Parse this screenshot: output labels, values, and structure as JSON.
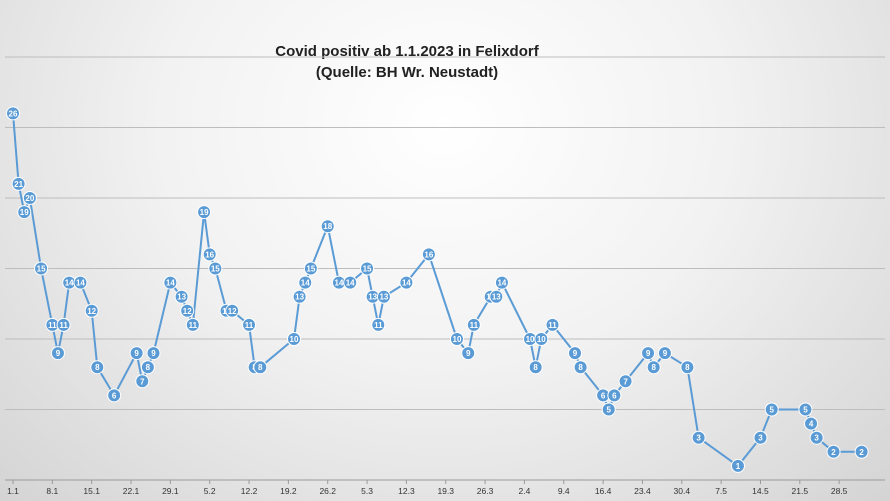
{
  "chart_data": {
    "type": "line",
    "title": "Covid positiv ab 1.1.2023  in Felixdorf",
    "subtitle": "(Quelle: BH Wr. Neustadt)",
    "xlabel": "",
    "ylabel": "",
    "ylim": [
      0,
      30
    ],
    "grid": true,
    "legend": "none",
    "x_tick_labels": [
      "1.1",
      "8.1",
      "15.1",
      "22.1",
      "29.1",
      "5.2",
      "12.2",
      "19.2",
      "26.2",
      "5.3",
      "12.3",
      "19.3",
      "26.3",
      "2.4",
      "9.4",
      "16.4",
      "23.4",
      "30.4",
      "7.5",
      "14.5",
      "21.5",
      "28.5"
    ],
    "series": [
      {
        "x": [
          "1.1",
          "2.1",
          "3.1",
          "4.1",
          "6.1",
          "8.1",
          "9.1",
          "10.1",
          "11.1",
          "13.1",
          "15.1",
          "16.1",
          "19.1",
          "23.1",
          "24.1",
          "25.1",
          "26.1",
          "29.1",
          "31.1",
          "1.2",
          "2.2",
          "4.2",
          "5.2",
          "6.2",
          "8.2",
          "9.2",
          "12.2",
          "13.2",
          "14.2",
          "20.2",
          "21.2",
          "22.2",
          "23.2",
          "26.2",
          "28.2",
          "2.3",
          "5.3",
          "6.3",
          "7.3",
          "8.3",
          "12.3",
          "16.3",
          "21.3",
          "23.3",
          "24.3",
          "27.3",
          "28.3",
          "29.3",
          "3.4",
          "4.4",
          "5.4",
          "7.4",
          "11.4",
          "12.4",
          "16.4",
          "17.4",
          "18.4",
          "20.4",
          "24.4",
          "25.4",
          "27.4",
          "1.5",
          "3.5",
          "10.5",
          "14.5",
          "16.5",
          "22.5",
          "23.5",
          "24.5",
          "27.5",
          "1.6"
        ],
        "values": [
          26,
          21,
          19,
          20,
          15,
          11,
          9,
          11,
          14,
          14,
          12,
          8,
          6,
          9,
          7,
          8,
          9,
          14,
          13,
          12,
          11,
          19,
          16,
          15,
          12,
          12,
          11,
          8,
          8,
          10,
          13,
          14,
          15,
          18,
          14,
          14,
          15,
          13,
          11,
          13,
          14,
          16,
          10,
          9,
          11,
          13,
          13,
          14,
          10,
          8,
          10,
          11,
          9,
          8,
          6,
          5,
          6,
          7,
          9,
          8,
          9,
          8,
          3,
          1,
          3,
          5,
          5,
          4,
          3,
          2,
          2
        ]
      }
    ]
  }
}
